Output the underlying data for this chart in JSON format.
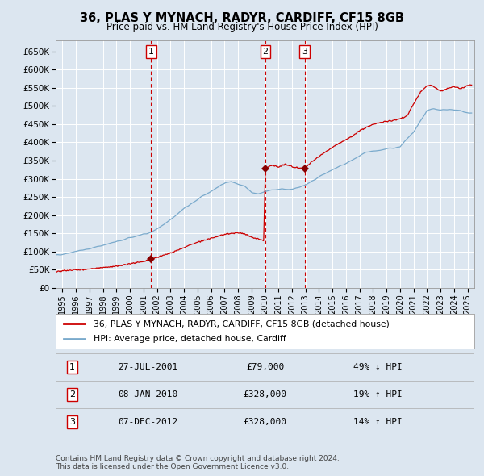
{
  "title": "36, PLAS Y MYNACH, RADYR, CARDIFF, CF15 8GB",
  "subtitle": "Price paid vs. HM Land Registry's House Price Index (HPI)",
  "bg_color": "#dce6f0",
  "plot_bg_color": "#dce6f0",
  "grid_color": "#ffffff",
  "red_line_color": "#cc0000",
  "blue_line_color": "#7aaacc",
  "transaction_color": "#880000",
  "dashed_line_color": "#cc0000",
  "ylim": [
    0,
    680000
  ],
  "yticks": [
    0,
    50000,
    100000,
    150000,
    200000,
    250000,
    300000,
    350000,
    400000,
    450000,
    500000,
    550000,
    600000,
    650000
  ],
  "ytick_labels": [
    "£0",
    "£50K",
    "£100K",
    "£150K",
    "£200K",
    "£250K",
    "£300K",
    "£350K",
    "£400K",
    "£450K",
    "£500K",
    "£550K",
    "£600K",
    "£650K"
  ],
  "xlim_start": 1994.5,
  "xlim_end": 2025.5,
  "xticks": [
    1995,
    1996,
    1997,
    1998,
    1999,
    2000,
    2001,
    2002,
    2003,
    2004,
    2005,
    2006,
    2007,
    2008,
    2009,
    2010,
    2011,
    2012,
    2013,
    2014,
    2015,
    2016,
    2017,
    2018,
    2019,
    2020,
    2021,
    2022,
    2023,
    2024,
    2025
  ],
  "transactions": [
    {
      "num": 1,
      "date": "27-JUL-2001",
      "year": 2001.57,
      "price": 79000,
      "pct": "49%",
      "dir": "↓"
    },
    {
      "num": 2,
      "date": "08-JAN-2010",
      "year": 2010.03,
      "price": 328000,
      "pct": "19%",
      "dir": "↑"
    },
    {
      "num": 3,
      "date": "07-DEC-2012",
      "year": 2012.93,
      "price": 328000,
      "pct": "14%",
      "dir": "↑"
    }
  ],
  "legend_line1": "36, PLAS Y MYNACH, RADYR, CARDIFF, CF15 8GB (detached house)",
  "legend_line2": "HPI: Average price, detached house, Cardiff",
  "footnote": "Contains HM Land Registry data © Crown copyright and database right 2024.\nThis data is licensed under the Open Government Licence v3.0."
}
